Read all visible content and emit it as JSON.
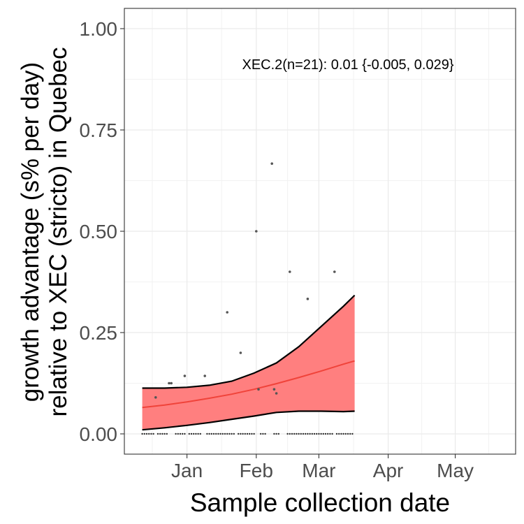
{
  "chart_data": {
    "type": "line",
    "title": "",
    "annotation": "XEC.2(n=21): 0.01 {-0.005, 0.029}",
    "xlabel": "Sample collection date",
    "ylabel_lines": [
      "growth advantage (s% per day)",
      "relative to XEC (stricto) in Quebec"
    ],
    "x_axis_type": "date",
    "xlim": [
      "2024-12-04",
      "2025-05-28"
    ],
    "ylim": [
      -0.05,
      1.05
    ],
    "x_ticks": [
      {
        "date": "2025-01-01",
        "label": "Jan"
      },
      {
        "date": "2025-02-01",
        "label": "Feb"
      },
      {
        "date": "2025-03-01",
        "label": "Mar"
      },
      {
        "date": "2025-04-01",
        "label": "Apr"
      },
      {
        "date": "2025-05-01",
        "label": "May"
      }
    ],
    "y_ticks": [
      {
        "value": 0.0,
        "label": "0.00"
      },
      {
        "value": 0.25,
        "label": "0.25"
      },
      {
        "value": 0.5,
        "label": "0.50"
      },
      {
        "value": 0.75,
        "label": "0.75"
      },
      {
        "value": 1.0,
        "label": "1.00"
      }
    ],
    "grid": true,
    "colors": {
      "fit_line": "#f0433a",
      "ribbon_fill": "#ff7f7f",
      "ribbon_edge": "#000000",
      "points": "#555555"
    },
    "fit": {
      "x": [
        "2024-12-12",
        "2024-12-22",
        "2025-01-01",
        "2025-01-11",
        "2025-01-21",
        "2025-01-31",
        "2025-02-10",
        "2025-02-20",
        "2025-03-02",
        "2025-03-12",
        "2025-03-17"
      ],
      "y": [
        0.065,
        0.071,
        0.079,
        0.088,
        0.098,
        0.11,
        0.124,
        0.139,
        0.155,
        0.172,
        0.18
      ],
      "lower": [
        0.01,
        0.015,
        0.021,
        0.028,
        0.036,
        0.044,
        0.053,
        0.056,
        0.056,
        0.055,
        0.056
      ],
      "upper": [
        0.113,
        0.113,
        0.115,
        0.12,
        0.13,
        0.15,
        0.175,
        0.215,
        0.265,
        0.315,
        0.342
      ]
    },
    "points": [
      {
        "x": "2024-12-18",
        "y": 0.09
      },
      {
        "x": "2024-12-24",
        "y": 0.125
      },
      {
        "x": "2024-12-25",
        "y": 0.125
      },
      {
        "x": "2024-12-31",
        "y": 0.143
      },
      {
        "x": "2025-01-09",
        "y": 0.143
      },
      {
        "x": "2025-01-19",
        "y": 0.3
      },
      {
        "x": "2025-01-25",
        "y": 0.2
      },
      {
        "x": "2025-02-01",
        "y": 0.5
      },
      {
        "x": "2025-02-02",
        "y": 0.11
      },
      {
        "x": "2025-02-08",
        "y": 0.667
      },
      {
        "x": "2025-02-09",
        "y": 0.11
      },
      {
        "x": "2025-02-10",
        "y": 0.1
      },
      {
        "x": "2025-02-16",
        "y": 0.4
      },
      {
        "x": "2025-02-24",
        "y": 0.333
      },
      {
        "x": "2025-03-08",
        "y": 0.4
      }
    ],
    "zero_points": {
      "x": [
        "2024-12-12",
        "2024-12-13",
        "2024-12-14",
        "2024-12-15",
        "2024-12-16",
        "2024-12-17",
        "2024-12-19",
        "2024-12-20",
        "2024-12-21",
        "2024-12-22",
        "2024-12-23",
        "2024-12-27",
        "2024-12-28",
        "2024-12-29",
        "2024-12-30",
        "2024-12-31",
        "2025-01-02",
        "2025-01-03",
        "2025-01-04",
        "2025-01-05",
        "2025-01-06",
        "2025-01-07",
        "2025-01-10",
        "2025-01-11",
        "2025-01-12",
        "2025-01-13",
        "2025-01-14",
        "2025-01-15",
        "2025-01-16",
        "2025-01-17",
        "2025-01-18",
        "2025-01-19",
        "2025-01-20",
        "2025-01-21",
        "2025-01-22",
        "2025-01-24",
        "2025-01-25",
        "2025-01-26",
        "2025-01-27",
        "2025-01-28",
        "2025-01-29",
        "2025-01-30",
        "2025-01-31",
        "2025-02-03",
        "2025-02-04",
        "2025-02-05",
        "2025-02-09",
        "2025-02-10",
        "2025-02-11",
        "2025-02-15",
        "2025-02-16",
        "2025-02-17",
        "2025-02-18",
        "2025-02-19",
        "2025-02-20",
        "2025-02-21",
        "2025-02-22",
        "2025-02-23",
        "2025-02-24",
        "2025-02-25",
        "2025-02-26",
        "2025-02-27",
        "2025-02-28",
        "2025-03-01",
        "2025-03-02",
        "2025-03-03",
        "2025-03-04",
        "2025-03-05",
        "2025-03-06",
        "2025-03-07",
        "2025-03-09",
        "2025-03-10",
        "2025-03-11",
        "2025-03-12",
        "2025-03-13",
        "2025-03-14",
        "2025-03-15",
        "2025-03-16"
      ],
      "y": 0
    }
  }
}
